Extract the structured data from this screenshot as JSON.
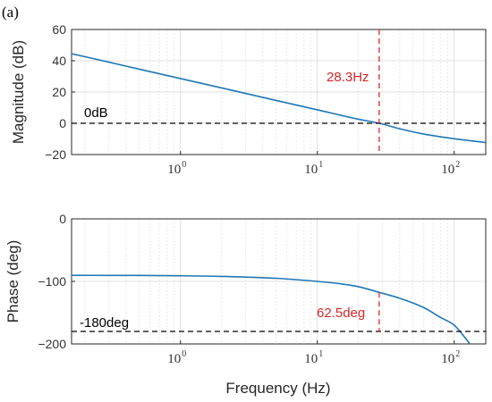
{
  "panel_tag": "(a)",
  "colors": {
    "curve": "#1f77b4",
    "crossover": "#e0262b",
    "reference": "#000000",
    "grid": "#d9d9d9"
  },
  "chart_data": [
    {
      "type": "line",
      "xscale": "log",
      "xlim": [
        0.16,
        170
      ],
      "ylim": [
        -20,
        60
      ],
      "ylabel": "Magnitude (dB)",
      "xlabel": "",
      "yticks": [
        -20,
        0,
        20,
        40,
        60
      ],
      "ytick_labels": [
        "−20",
        "0",
        "20",
        "40",
        "60"
      ],
      "xticks": [
        {
          "value": 1,
          "base": "10",
          "exp": "0"
        },
        {
          "value": 10,
          "base": "10",
          "exp": "1"
        },
        {
          "value": 100,
          "base": "10",
          "exp": "2"
        }
      ],
      "grid": true,
      "series": [
        {
          "x": [
            0.16,
            0.3,
            0.5,
            1,
            2,
            5,
            10,
            20,
            28.3,
            40,
            60,
            100,
            170
          ],
          "y": [
            44.5,
            39.1,
            34.6,
            28.6,
            22.6,
            14.6,
            8.6,
            2.6,
            0,
            -3.5,
            -6.9,
            -9.9,
            -12.3
          ]
        }
      ],
      "hlines": [
        {
          "y": 0,
          "label": "0dB"
        }
      ],
      "vlines": [
        {
          "x": 28.3,
          "label": "28.3Hz"
        }
      ]
    },
    {
      "type": "line",
      "xscale": "log",
      "xlim": [
        0.16,
        170
      ],
      "ylim": [
        -200,
        0
      ],
      "ylabel": "Phase (deg)",
      "xlabel": "Frequency (Hz)",
      "yticks": [
        -200,
        -100,
        0
      ],
      "ytick_labels": [
        "−200",
        "−100",
        "0"
      ],
      "xticks": [
        {
          "value": 1,
          "base": "10",
          "exp": "0"
        },
        {
          "value": 10,
          "base": "10",
          "exp": "1"
        },
        {
          "value": 100,
          "base": "10",
          "exp": "2"
        }
      ],
      "grid": true,
      "series": [
        {
          "x": [
            0.16,
            0.5,
            1,
            2,
            5,
            10,
            15,
            20,
            28.3,
            40,
            60,
            80,
            100,
            120,
            130
          ],
          "y": [
            -90.3,
            -90.5,
            -91,
            -92,
            -95,
            -100,
            -104,
            -108.5,
            -117.5,
            -127,
            -142,
            -158,
            -170,
            -190,
            -200
          ]
        }
      ],
      "hlines": [
        {
          "y": -180,
          "label": "-180deg"
        }
      ],
      "vlines": [
        {
          "x": 28.3,
          "y_from": -180,
          "y_to": -117.5,
          "label": "62.5deg"
        }
      ]
    }
  ]
}
